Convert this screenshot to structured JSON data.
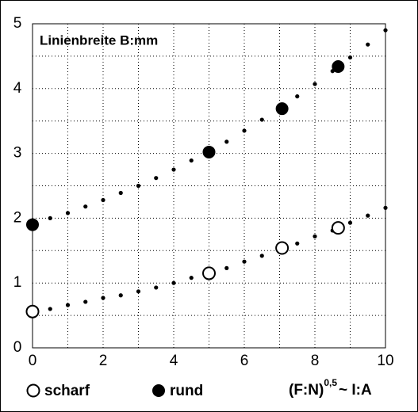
{
  "chart_data": {
    "type": "scatter",
    "title": "Linienbreite B:mm",
    "x_label": {
      "base": "(F:N)",
      "sup": "0,5",
      "rest": "~ I:A"
    },
    "xlim": [
      0,
      10
    ],
    "ylim": [
      0,
      5
    ],
    "xticks": [
      0,
      2,
      4,
      6,
      8,
      10
    ],
    "yticks": [
      0,
      1,
      2,
      3,
      4,
      5
    ],
    "x_minor_ticks": [
      1,
      3,
      5,
      7,
      9
    ],
    "y_minor_ticks": [
      0.5,
      1.5,
      2.5,
      3.5,
      4.5
    ],
    "grid": true,
    "color": "#000000",
    "series": [
      {
        "marker": "dot",
        "x": [
          0.5,
          1,
          1.5,
          2,
          2.5,
          3,
          3.5,
          4,
          4.5,
          5,
          5.5,
          6,
          6.5,
          7,
          7.5,
          8,
          8.5,
          9,
          9.5,
          10
        ],
        "values": [
          2.0,
          2.08,
          2.18,
          2.28,
          2.39,
          2.5,
          2.62,
          2.75,
          2.89,
          3.02,
          3.18,
          3.35,
          3.52,
          3.69,
          3.88,
          4.07,
          4.27,
          4.48,
          4.68,
          4.9
        ]
      },
      {
        "marker": "dot",
        "x": [
          0.5,
          1,
          1.5,
          2,
          2.5,
          3,
          3.5,
          4,
          4.5,
          5,
          5.5,
          6,
          6.5,
          7,
          7.5,
          8,
          8.5,
          9,
          9.5,
          10
        ],
        "values": [
          0.6,
          0.66,
          0.71,
          0.77,
          0.81,
          0.87,
          0.93,
          1.0,
          1.08,
          1.15,
          1.23,
          1.33,
          1.42,
          1.52,
          1.61,
          1.72,
          1.81,
          1.93,
          2.04,
          2.16
        ]
      },
      {
        "name": "scharf",
        "marker": "open",
        "x": [
          0,
          5,
          7.07,
          8.66
        ],
        "values": [
          0.56,
          1.15,
          1.54,
          1.85
        ]
      },
      {
        "name": "rund",
        "marker": "filled",
        "x": [
          0,
          5,
          7.07,
          8.66
        ],
        "values": [
          1.9,
          3.02,
          3.69,
          4.34
        ]
      }
    ]
  }
}
